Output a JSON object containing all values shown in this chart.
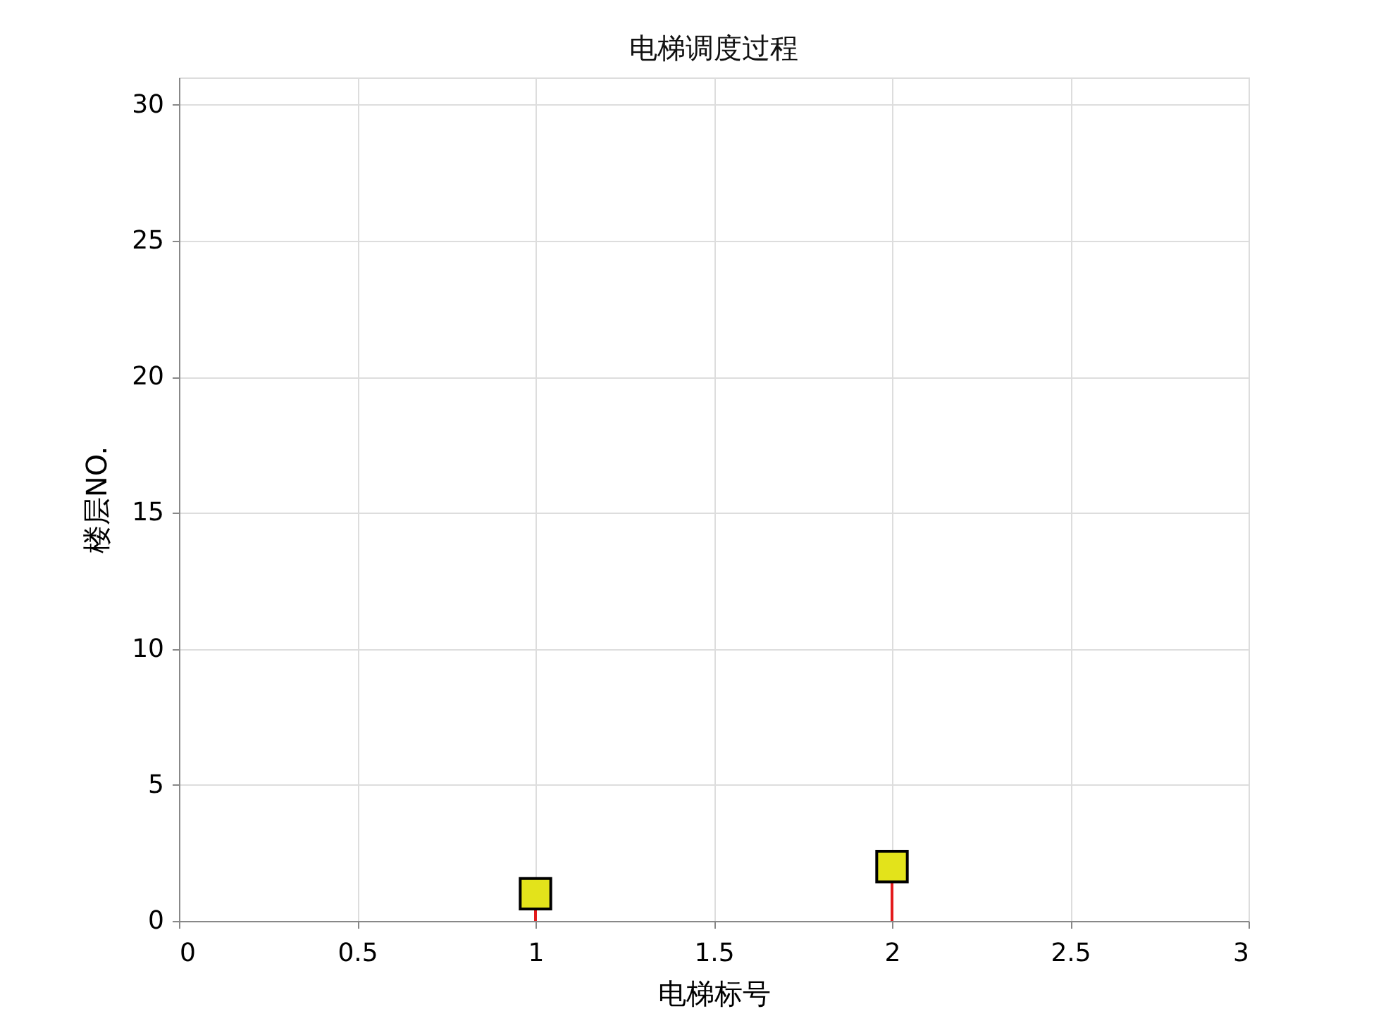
{
  "chart_data": {
    "type": "lollipop",
    "title": "电梯调度过程",
    "xlabel": "电梯标号",
    "ylabel": "楼层NO.",
    "x": [
      1,
      2
    ],
    "marker": "square",
    "series": [
      {
        "color": "#e3e31b",
        "values": [
          1,
          2
        ]
      }
    ],
    "xlim": [
      0,
      3
    ],
    "xticks": [
      0,
      0.5,
      1,
      1.5,
      2,
      2.5,
      3
    ],
    "ylim": [
      0,
      31
    ],
    "yticks": [
      0,
      5,
      10,
      15,
      20,
      25,
      30
    ],
    "grid": true
  }
}
